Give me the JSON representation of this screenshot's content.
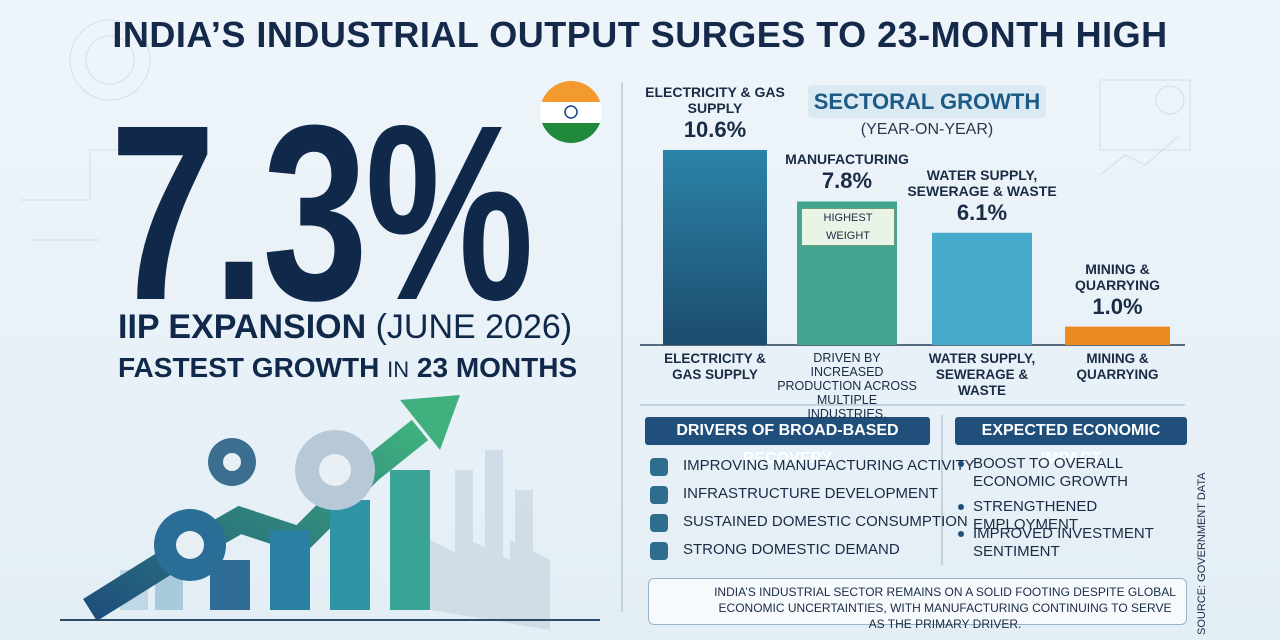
{
  "header": {
    "title": "INDIA’S INDUSTRIAL OUTPUT SURGES TO 23-MONTH HIGH"
  },
  "hero": {
    "figure": "7.3%",
    "label": "IIP EXPANSION",
    "period": "(JUNE 2026)",
    "subline_a": "FASTEST GROWTH",
    "subline_b": "IN",
    "subline_c": "23 MONTHS"
  },
  "chart_data": {
    "type": "bar",
    "title": "SECTORAL GROWTH",
    "subtitle": "(YEAR-ON-YEAR)",
    "categories": [
      "ELECTRICITY & GAS SUPPLY",
      "MANUFACTURING",
      "WATER SUPPLY, SEWERAGE & WASTE",
      "MINING & QUARRYING"
    ],
    "values": [
      10.6,
      7.8,
      6.1,
      1.0
    ],
    "value_labels": [
      "10.6%",
      "7.8%",
      "6.1%",
      "1.0%"
    ],
    "colors": [
      "#236a8f",
      "#43a58f",
      "#45aacb",
      "#ee8a24"
    ],
    "badge": "HIGHEST WEIGHT",
    "annotation": "DRIVEN BY INCREASED PRODUCTION ACROSS MULTIPLE INDUSTRIES."
  },
  "drivers": {
    "title": "DRIVERS OF BROAD-BASED RECOVERY",
    "items": [
      "IMPROVING MANUFACTURING ACTIVITY",
      "INFRASTRUCTURE DEVELOPMENT",
      "SUSTAINED DOMESTIC CONSUMPTION",
      "STRONG DOMESTIC DEMAND"
    ]
  },
  "impact": {
    "title": "EXPECTED ECONOMIC IMPACT",
    "items": [
      "BOOST TO OVERALL ECONOMIC GROWTH",
      "STRENGTHENED EMPLOYMENT",
      "IMPROVED INVESTMENT SENTIMENT"
    ]
  },
  "footer": {
    "note": "INDIA’S INDUSTRIAL SECTOR REMAINS ON A SOLID FOOTING DESPITE GLOBAL ECONOMIC UNCERTAINTIES, WITH MANUFACTURING CONTINUING TO SERVE AS THE PRIMARY DRIVER.",
    "source": "SOURCE: GOVERNMENT DATA"
  }
}
